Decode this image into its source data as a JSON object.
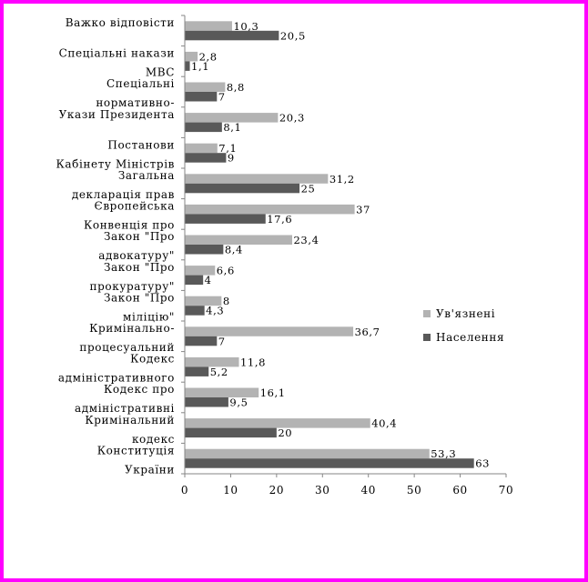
{
  "chart_data": {
    "type": "bar",
    "orientation": "horizontal",
    "title": "",
    "xlabel": "",
    "ylabel": "",
    "xlim": [
      0,
      70
    ],
    "x_ticks": [
      0,
      10,
      20,
      30,
      40,
      50,
      60,
      70
    ],
    "grid": false,
    "legend_position": "right",
    "categories": [
      [
        "Важко відповісти"
      ],
      [
        "Спеціальні накази",
        "МВС"
      ],
      [
        "Спеціальні",
        "нормативно-"
      ],
      [
        "Укази Президента"
      ],
      [
        "Постанови",
        "Кабінету Міністрів"
      ],
      [
        "Загальна",
        "декларація прав"
      ],
      [
        "Європейська",
        "Конвенція про"
      ],
      [
        "Закон \"Про",
        "адвокатуру\""
      ],
      [
        "Закон \"Про",
        "прокуратуру\""
      ],
      [
        "Закон \"Про",
        "міліцію\""
      ],
      [
        "Кримінально-",
        "процесуальний"
      ],
      [
        "Кодекс",
        "адміністративного"
      ],
      [
        "Кодекс про",
        "адміністративні"
      ],
      [
        "Кримінальний",
        "кодекс"
      ],
      [
        "Конституція",
        "України"
      ]
    ],
    "series": [
      {
        "name": "Ув'язнені",
        "color": "#b3b3b3",
        "values": [
          10.3,
          2.8,
          8.8,
          20.3,
          7.1,
          31.2,
          37,
          23.4,
          6.6,
          8,
          36.7,
          11.8,
          16.1,
          40.4,
          53.3
        ],
        "labels": [
          "10,3",
          "2,8",
          "8,8",
          "20,3",
          "7,1",
          "31,2",
          "37",
          "23,4",
          "6,6",
          "8",
          "36,7",
          "11,8",
          "16,1",
          "40,4",
          "53,3"
        ]
      },
      {
        "name": "Населення",
        "color": "#595959",
        "values": [
          20.5,
          1.1,
          7,
          8.1,
          9,
          25,
          17.6,
          8.4,
          4,
          4.3,
          7,
          5.2,
          9.5,
          20,
          63
        ],
        "labels": [
          "20,5",
          "1,1",
          "7",
          "8,1",
          "9",
          "25",
          "17,6",
          "8,4",
          "4",
          "4,3",
          "7",
          "5,2",
          "9,5",
          "20",
          "63"
        ]
      }
    ]
  }
}
